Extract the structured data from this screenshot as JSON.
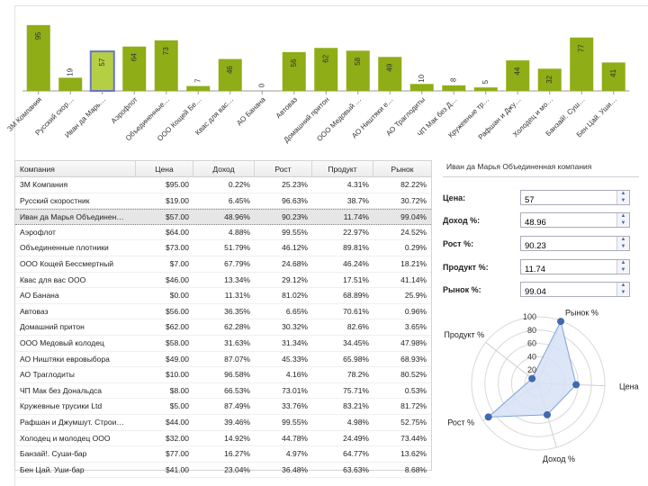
{
  "grid": {
    "headers": [
      "Компания",
      "Цена",
      "Доход",
      "Рост",
      "Продукт",
      "Рынок"
    ],
    "selected_index": 2,
    "rows": [
      [
        "3M Компания",
        "$95.00",
        "0.22%",
        "25.23%",
        "4.31%",
        "82.22%"
      ],
      [
        "Русский скоростник",
        "$19.00",
        "6.45%",
        "96.63%",
        "38.7%",
        "30.72%"
      ],
      [
        "Иван да Марья Объединен…",
        "$57.00",
        "48.96%",
        "90.23%",
        "11.74%",
        "99.04%"
      ],
      [
        "Аэрофлот",
        "$64.00",
        "4.88%",
        "99.55%",
        "22.97%",
        "24.52%"
      ],
      [
        "Объединенные плотники",
        "$73.00",
        "51.79%",
        "46.12%",
        "89.81%",
        "0.29%"
      ],
      [
        "ООО Кощей Бессмертный",
        "$7.00",
        "67.79%",
        "24.68%",
        "46.24%",
        "18.21%"
      ],
      [
        "Квас для вас ООО",
        "$46.00",
        "13.34%",
        "29.12%",
        "17.51%",
        "41.14%"
      ],
      [
        "АО Банана",
        "$0.00",
        "11.31%",
        "81.02%",
        "68.89%",
        "25.9%"
      ],
      [
        "Автоваз",
        "$56.00",
        "36.35%",
        "6.65%",
        "70.61%",
        "0.96%"
      ],
      [
        "Домашний притон",
        "$62.00",
        "62.28%",
        "30.32%",
        "82.6%",
        "3.65%"
      ],
      [
        "ООО Медовый колодец",
        "$58.00",
        "31.63%",
        "31.34%",
        "34.45%",
        "47.98%"
      ],
      [
        "АО Ништяки евровыбора",
        "$49.00",
        "87.07%",
        "45.33%",
        "65.98%",
        "68.93%"
      ],
      [
        "АО Траглодиты",
        "$10.00",
        "96.58%",
        "4.16%",
        "78.2%",
        "80.52%"
      ],
      [
        "ЧП Мак без Дональдса",
        "$8.00",
        "66.53%",
        "73.01%",
        "75.71%",
        "0.53%"
      ],
      [
        "Кружевные трусики Ltd",
        "$5.00",
        "87.49%",
        "33.76%",
        "83.21%",
        "81.72%"
      ],
      [
        "Рафшан и Джумшут. Строи…",
        "$44.00",
        "39.46%",
        "99.55%",
        "4.98%",
        "52.75%"
      ],
      [
        "Холодец и молодец ООО",
        "$32.00",
        "14.92%",
        "44.78%",
        "24.49%",
        "73.44%"
      ],
      [
        "Банзай!. Суши-бар",
        "$77.00",
        "16.27%",
        "4.97%",
        "64.77%",
        "13.62%"
      ],
      [
        "Бен Цай. Уши-бар",
        "$41.00",
        "23.04%",
        "36.48%",
        "63.63%",
        "8.68%"
      ]
    ]
  },
  "form": {
    "title": "Иван да Марья Объединенная компания",
    "fields": [
      {
        "label": "Цена:",
        "value": "57"
      },
      {
        "label": "Доход %:",
        "value": "48.96"
      },
      {
        "label": "Рост %:",
        "value": "90.23"
      },
      {
        "label": "Продукт %:",
        "value": "11.74"
      },
      {
        "label": "Рынок %:",
        "value": "99.04"
      }
    ],
    "spin_up": "▲",
    "spin_down": "▼"
  },
  "colors": {
    "bar": "#8fad16",
    "bar_selected": "#b5cf45",
    "bar_selected_border": "#6a74c8",
    "radar_fill": "#d6e2f4",
    "radar_line": "#7da2d6",
    "radar_point": "#3f69b0"
  },
  "chart_data": [
    {
      "type": "bar",
      "categories": [
        "3M Компания",
        "Русский скор…",
        "Иван да Марь…",
        "Аэрофлот",
        "Объединенные…",
        "ООО Кощей Бе…",
        "Квас для вас…",
        "АО Банана",
        "Автоваз",
        "Домашний притон",
        "ООО Медовый …",
        "АО Ништяки е…",
        "АО Траглодиты",
        "ЧП Мак без Д…",
        "Кружевные тр…",
        "Рафшан и Джу…",
        "Холодец и мо…",
        "Банзай!. Суш…",
        "Бен Цай. Уши…"
      ],
      "values": [
        95,
        19,
        57,
        64,
        73,
        7,
        46,
        0,
        56,
        62,
        58,
        49,
        10,
        8,
        5,
        44,
        32,
        77,
        41
      ],
      "selected_index": 2,
      "ylim": [
        0,
        100
      ]
    },
    {
      "type": "radar",
      "axes": [
        "Рынок %",
        "Цена",
        "Доход %",
        "Рост %",
        "Продукт %"
      ],
      "values": [
        99.04,
        57,
        48.96,
        90.23,
        11.74
      ],
      "ticks": [
        "20",
        "40",
        "60",
        "80",
        "100"
      ],
      "rlim": [
        0,
        100
      ]
    }
  ]
}
